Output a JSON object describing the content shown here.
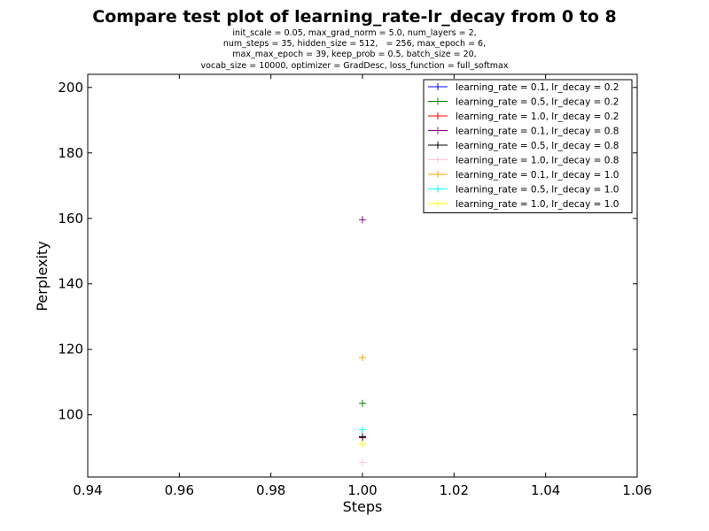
{
  "chart_data": {
    "type": "scatter",
    "title": "Compare test plot of learning_rate-lr_decay from 0 to 8",
    "subtitle": [
      "init_scale = 0.05, max_grad_norm = 5.0, num_layers = 2,",
      "num_steps = 35, hidden_size = 512,   = 256, max_epoch = 6,",
      "max_max_epoch = 39, keep_prob = 0.5, batch_size = 20,",
      "vocab_size = 10000, optimizer = GradDesc, loss_function = full_softmax"
    ],
    "xlabel": "Steps",
    "ylabel": "Perplexity",
    "xlim": [
      0.94,
      1.06
    ],
    "ylim": [
      81,
      204
    ],
    "xticks": [
      "0.94",
      "0.96",
      "0.98",
      "1.00",
      "1.02",
      "1.04",
      "1.06"
    ],
    "yticks": [
      "100",
      "120",
      "140",
      "160",
      "180",
      "200"
    ],
    "grid": false,
    "legend_position": "top-right",
    "series": [
      {
        "name": "learning_rate = 0.1, lr_decay = 0.2",
        "color": "#0000ff",
        "x": [
          1.0
        ],
        "y": [
          93.3
        ]
      },
      {
        "name": "learning_rate = 0.5, lr_decay = 0.2",
        "color": "#008000",
        "x": [
          1.0
        ],
        "y": [
          103.5
        ]
      },
      {
        "name": "learning_rate = 1.0, lr_decay = 0.2",
        "color": "#ff0000",
        "x": [
          1.0
        ],
        "y": [
          93.0
        ]
      },
      {
        "name": "learning_rate = 0.1, lr_decay = 0.8",
        "color": "#800080",
        "x": [
          1.0
        ],
        "y": [
          159.6
        ]
      },
      {
        "name": "learning_rate = 0.5, lr_decay = 0.8",
        "color": "#000000",
        "x": [
          1.0
        ],
        "y": [
          93.2
        ]
      },
      {
        "name": "learning_rate = 1.0, lr_decay = 0.8",
        "color": "#ffc0cb",
        "x": [
          1.0
        ],
        "y": [
          85.5
        ]
      },
      {
        "name": "learning_rate = 0.1, lr_decay = 1.0",
        "color": "#ffa500",
        "x": [
          1.0
        ],
        "y": [
          117.5
        ]
      },
      {
        "name": "learning_rate = 0.5, lr_decay = 1.0",
        "color": "#00ffff",
        "x": [
          1.0
        ],
        "y": [
          95.5
        ]
      },
      {
        "name": "learning_rate = 1.0, lr_decay = 1.0",
        "color": "#ffff00",
        "x": [
          1.0
        ],
        "y": [
          91.0
        ]
      }
    ]
  }
}
